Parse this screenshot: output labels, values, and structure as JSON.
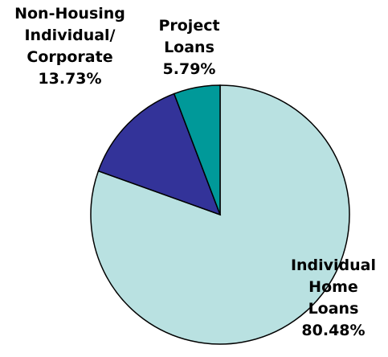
{
  "chart_data": {
    "type": "pie",
    "categories": [
      "Individual Home Loans",
      "Non-Housing Individual/ Corporate",
      "Project Loans"
    ],
    "values": [
      80.48,
      13.73,
      5.79
    ],
    "value_labels": [
      "80.48%",
      "13.73%",
      "5.79%"
    ],
    "colors": [
      "#b9e1e1",
      "#333399",
      "#009999"
    ]
  }
}
